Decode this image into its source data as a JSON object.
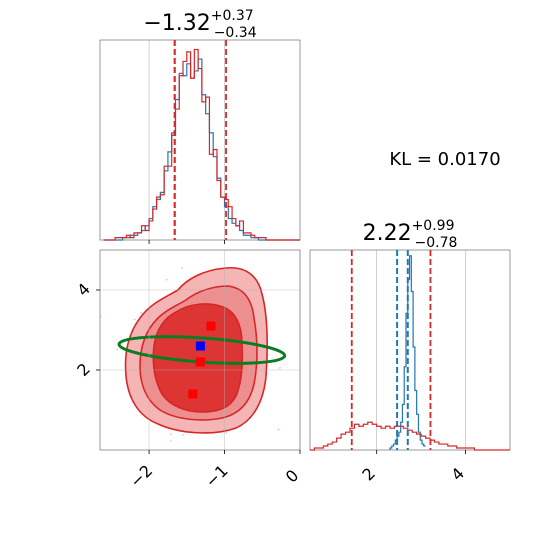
{
  "chart_data": [
    {
      "type": "histogram",
      "panel": "marginal-x",
      "title": {
        "value": "−1.32",
        "plus": "+0.37",
        "minus": "−0.34"
      },
      "xlim": [
        -2.65,
        0.0
      ],
      "reference_lines": [
        -1.66,
        -0.98
      ],
      "comparison_lines": [
        -1.66
      ],
      "series": [
        {
          "color": "#1f77b4",
          "bin_edges_start": -2.6,
          "bin_width": 0.05,
          "values": [
            0,
            0,
            0,
            0,
            0,
            1,
            1,
            2,
            2,
            3,
            4,
            6,
            9,
            14,
            17,
            20,
            29,
            37,
            45,
            59,
            70,
            69,
            74,
            68,
            71,
            76,
            61,
            53,
            45,
            35,
            26,
            18,
            14,
            9,
            7,
            6,
            4,
            2,
            2,
            1,
            1,
            0,
            0,
            0,
            0,
            0,
            0,
            0,
            0,
            0,
            0,
            0
          ]
        },
        {
          "color": "#d62728",
          "bin_edges_start": -2.6,
          "bin_width": 0.05,
          "values": [
            0,
            0,
            0,
            1,
            1,
            1,
            2,
            1,
            3,
            3,
            6,
            4,
            8,
            13,
            18,
            19,
            31,
            31,
            44,
            55,
            69,
            75,
            79,
            68,
            80,
            72,
            58,
            60,
            36,
            38,
            25,
            18,
            17,
            14,
            9,
            6,
            8,
            3,
            3,
            2,
            1,
            1,
            1,
            0,
            0,
            0,
            0,
            0,
            0,
            0,
            0,
            0
          ]
        }
      ]
    },
    {
      "type": "histogram",
      "panel": "marginal-y",
      "title": {
        "value": "2.22",
        "plus": "+0.99",
        "minus": "−0.78"
      },
      "xlim": [
        0.5,
        5.0
      ],
      "reference_lines": [
        1.44,
        3.21
      ],
      "comparison_lines": [
        2.46,
        2.7
      ],
      "series": [
        {
          "color": "#1f77b4",
          "bin_edges_start": 2.3,
          "bin_width": 0.04,
          "values": [
            1,
            2,
            3,
            5,
            7,
            9,
            14,
            23,
            42,
            69,
            86,
            98,
            80,
            52,
            30,
            18,
            9,
            5,
            3,
            2
          ]
        },
        {
          "color": "#d62728",
          "bin_edges_start": 0.5,
          "bin_width": 0.1,
          "values": [
            0,
            1,
            1,
            2,
            3,
            4,
            6,
            8,
            9,
            11,
            13,
            12,
            13,
            14,
            13,
            12,
            11,
            12,
            11,
            12,
            12,
            11,
            10,
            9,
            8,
            7,
            6,
            5,
            4,
            3,
            3,
            2,
            2,
            1,
            1,
            1,
            1,
            0,
            0,
            0,
            0,
            0,
            0,
            0,
            0
          ]
        }
      ]
    },
    {
      "type": "contour",
      "panel": "joint",
      "xlim": [
        -2.65,
        0.0
      ],
      "ylim": [
        0.0,
        5.0
      ],
      "xticks": [
        "−2",
        "−1",
        "0"
      ],
      "xtick_values": [
        -2,
        -1,
        0
      ],
      "yticks": [
        "2",
        "4"
      ],
      "ytick_values": [
        2,
        4
      ],
      "ellipse": {
        "cx": -1.3,
        "cy": 2.5,
        "rx": 1.1,
        "ry": 0.3,
        "tilt_deg": 4
      },
      "points": [
        {
          "x": -1.18,
          "y": 3.1,
          "color": "#ff0000"
        },
        {
          "x": -1.32,
          "y": 2.6,
          "color": "#0000ff"
        },
        {
          "x": -1.32,
          "y": 2.2,
          "color": "#ff0000"
        },
        {
          "x": -1.42,
          "y": 1.4,
          "color": "#ff0000"
        }
      ]
    }
  ],
  "annotation": {
    "label": "KL = 0.0170"
  },
  "colors": {
    "blue": "#1f77b4",
    "red": "#d62728",
    "green": "#0a7d23",
    "grid": "#b0b0b0"
  }
}
